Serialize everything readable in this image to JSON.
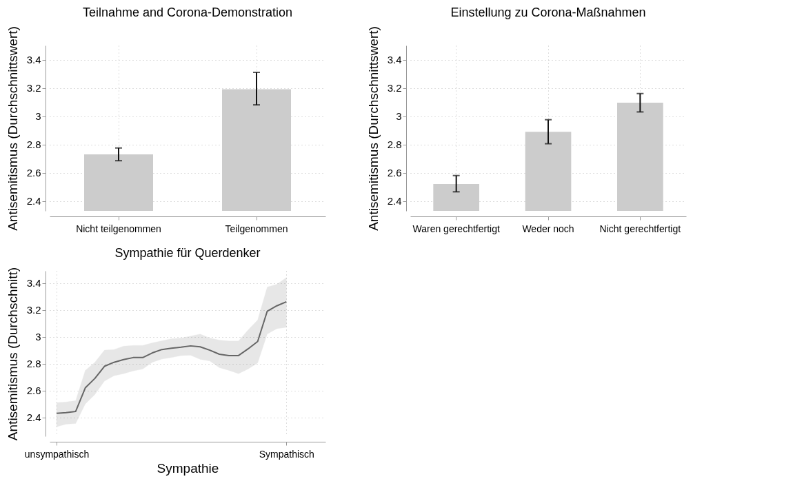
{
  "chart_data": [
    {
      "type": "bar",
      "title": "Teilnahme and Corona-Demonstration",
      "ylabel": "Antisemitismus (Durchschnittswert)",
      "categories": [
        "Nicht teilgenommen",
        "Teilgenommen"
      ],
      "values": [
        2.73,
        3.19
      ],
      "errors": [
        [
          2.685,
          2.775
        ],
        [
          3.08,
          3.31
        ]
      ],
      "color": "#cccccc",
      "ylim": [
        2.33,
        3.5
      ],
      "yticks": [
        2.4,
        2.6,
        2.8,
        3,
        3.2,
        3.4
      ],
      "grid": true
    },
    {
      "type": "bar",
      "title": "Einstellung zu Corona-Maßnahmen",
      "ylabel": "Antisemitismus (Durchschnittswert)",
      "categories": [
        "Waren gerechtfertigt",
        "Weder noch",
        "Nicht gerechtfertigt"
      ],
      "values": [
        2.52,
        2.89,
        3.095
      ],
      "errors": [
        [
          2.465,
          2.58
        ],
        [
          2.805,
          2.975
        ],
        [
          3.03,
          3.16
        ]
      ],
      "color": "#cccccc",
      "ylim": [
        2.33,
        3.5
      ],
      "yticks": [
        2.4,
        2.6,
        2.8,
        3,
        3.2,
        3.4
      ],
      "grid": true
    },
    {
      "type": "line",
      "title": "Sympathie für Querdenker",
      "xlabel": "Sympathie",
      "ylabel": "Antisemitismus (Durchschnitt)",
      "categories": [
        "unsympathisch",
        null,
        null,
        null,
        null,
        null,
        null,
        null,
        null,
        null,
        null,
        null,
        null,
        null,
        null,
        null,
        null,
        null,
        null,
        null,
        null,
        null,
        null,
        null,
        "Sympathisch"
      ],
      "ylim": [
        2.26,
        3.49
      ],
      "yticks": [
        2.4,
        2.6,
        2.8,
        3,
        3.2,
        3.4
      ],
      "grid": true,
      "series": [
        {
          "color": "#666666",
          "values": [
            2.43,
            2.435,
            2.445,
            2.62,
            2.69,
            2.78,
            2.81,
            2.83,
            2.845,
            2.845,
            2.88,
            2.905,
            2.915,
            2.922,
            2.932,
            2.925,
            2.9,
            2.87,
            2.86,
            2.86,
            2.91,
            2.965,
            3.19,
            3.23,
            3.26
          ],
          "lower": [
            2.33,
            2.35,
            2.355,
            2.5,
            2.57,
            2.67,
            2.71,
            2.725,
            2.745,
            2.76,
            2.81,
            2.834,
            2.845,
            2.86,
            2.862,
            2.832,
            2.82,
            2.77,
            2.75,
            2.725,
            2.76,
            2.805,
            3.02,
            3.06,
            3.07
          ],
          "upper": [
            2.51,
            2.515,
            2.525,
            2.75,
            2.81,
            2.9,
            2.905,
            2.93,
            2.935,
            2.935,
            2.955,
            2.97,
            2.985,
            2.99,
            3.005,
            3.02,
            2.99,
            2.975,
            2.968,
            2.968,
            3.05,
            3.125,
            3.37,
            3.39,
            3.44
          ]
        }
      ]
    }
  ]
}
